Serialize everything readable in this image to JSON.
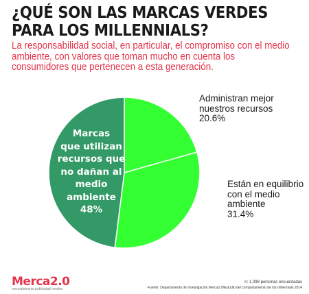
{
  "header": {
    "title": "¿QUÉ SON LAS MARCAS VERDES PARA LOS MILLENNIALS?",
    "subtitle": "La responsabilidad social, en particular, el compromiso con el medio ambiente, con valores que toman mucho en cuenta los consumidores que pertenecen a esta generación."
  },
  "chart_data": {
    "type": "pie",
    "title": "¿QUÉ SON LAS MARCAS VERDES PARA LOS MILLENNIALS?",
    "slices": [
      {
        "label": "Administran mejor nuestros recursos",
        "value": 20.6,
        "value_label": "20.6%",
        "color": "#33ff33"
      },
      {
        "label": "Están en equilibrio con el medio ambiente",
        "value": 31.4,
        "value_label": "31.4%",
        "color": "#33ff33"
      },
      {
        "label": "Marcas que utilizan recursos que no dañan al medio ambiente",
        "value": 48,
        "value_label": "48%",
        "color": "#339966"
      }
    ],
    "legend": "none",
    "slice_border_color": "#ffffff"
  },
  "labels": {
    "slice1_lines": [
      "Administran mejor",
      "nuestros recursos",
      "20.6%"
    ],
    "slice2_lines": [
      "Están en equilibrio",
      "con el medio",
      "ambiente",
      "31.4%"
    ],
    "slice3_lines": [
      "Marcas",
      "que utilizan",
      "recursos que",
      "no dañan al",
      "medio",
      "ambiente",
      "48%"
    ]
  },
  "footer": {
    "logo": "Merca2.0",
    "tagline": "mercadotecnia publicidad medios",
    "note": "n: 1,098 personas encuestadas",
    "source": "Fuente: Departamento de Investigación Merca2.0/Estudio del comportamiento de los millennials 2014"
  }
}
